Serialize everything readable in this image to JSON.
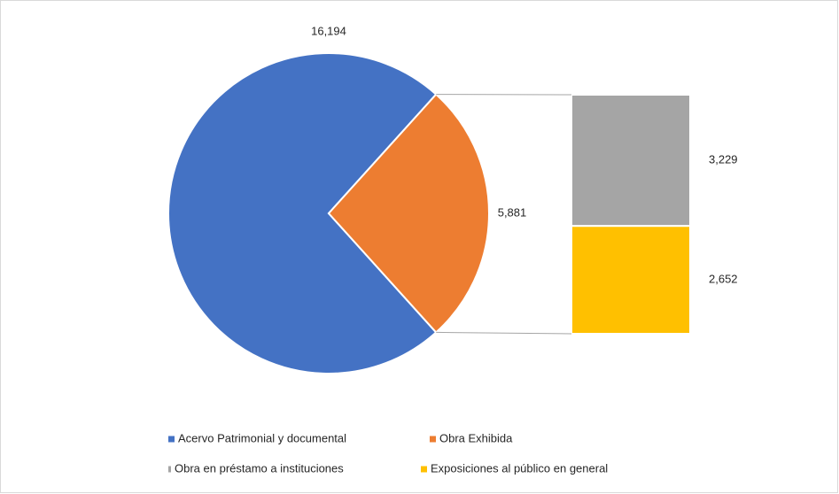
{
  "chart_data": {
    "type": "pie",
    "categories": [
      "Acervo Patrimonial y documental",
      "Obra Exhibida"
    ],
    "values": [
      16194,
      5881
    ],
    "value_labels": [
      "16,194",
      "5,881"
    ],
    "colors": [
      "#4472c4",
      "#ed7d31"
    ],
    "breakdown": {
      "categories": [
        "Obra en préstamo a instituciones",
        "Exposiciones al público en general"
      ],
      "values": [
        3229,
        2652
      ],
      "value_labels": [
        "3,229",
        "2,652"
      ],
      "colors": [
        "#a5a5a5",
        "#ffc000"
      ]
    },
    "legend": "bottom"
  }
}
